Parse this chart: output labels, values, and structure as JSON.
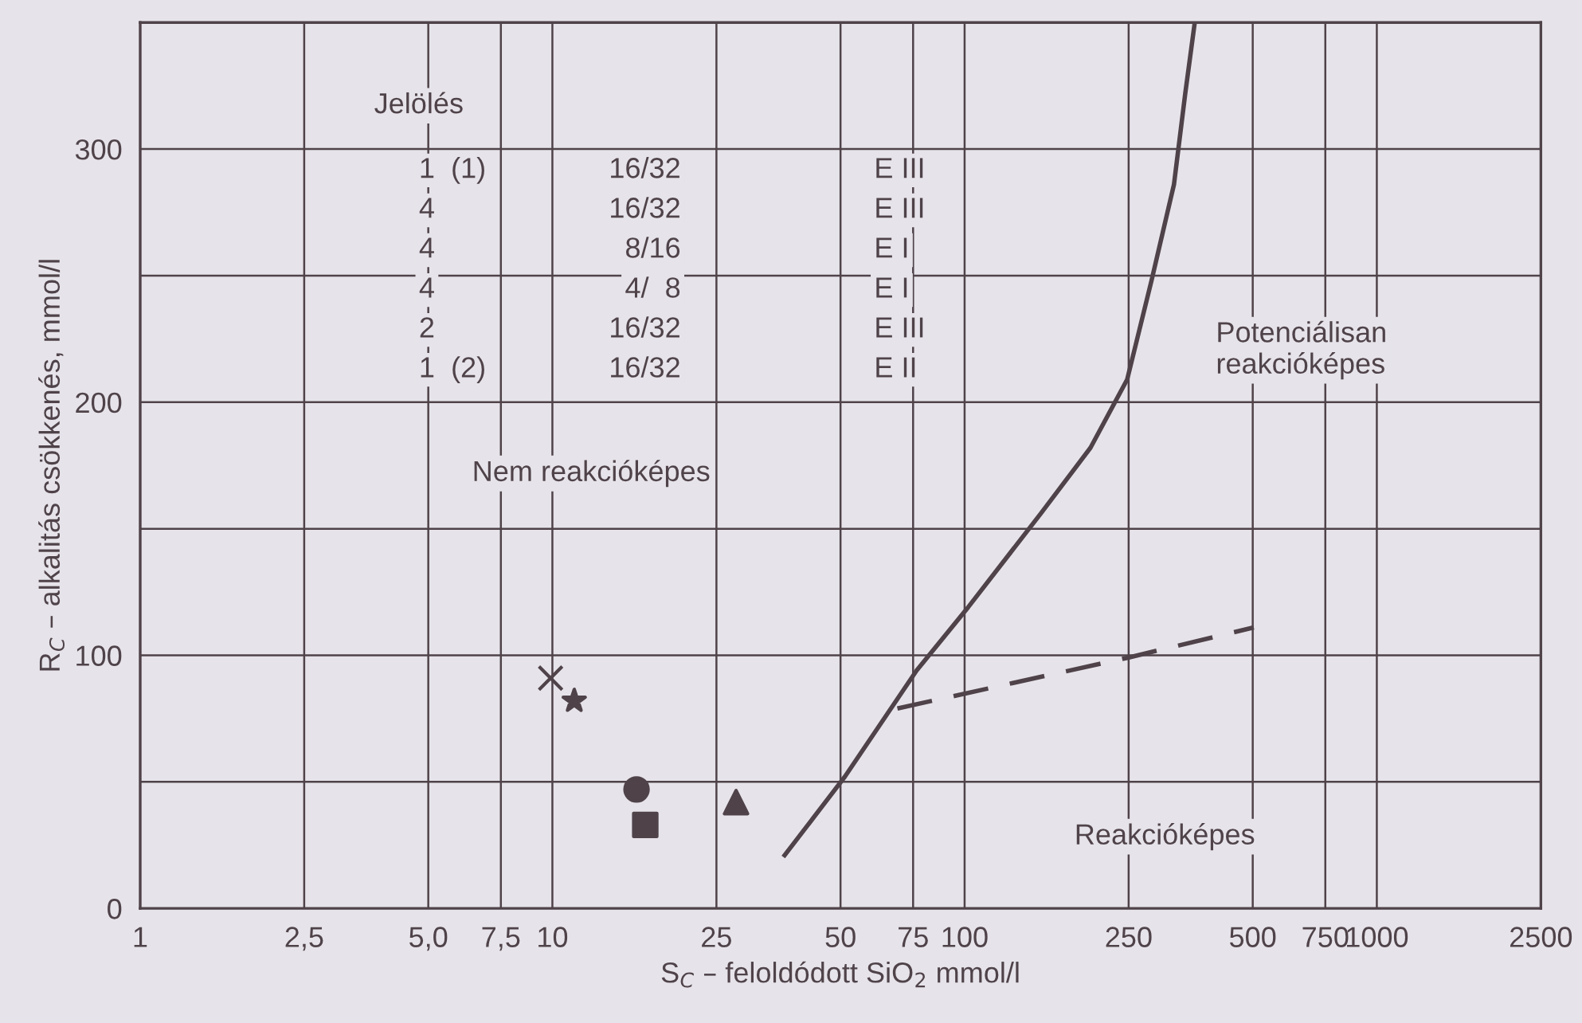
{
  "chart_data": {
    "type": "line",
    "xlabel": "S$_{C}$ – feloldódott SiO$_{2}$ mmol/l",
    "ylabel": "R$_{C}$ – alkalitás csökkenés, mmol/l",
    "log": "x",
    "grid": true,
    "legend": false,
    "xlim": [
      1,
      2500
    ],
    "xticks": [
      1,
      {
        "value": 2.5,
        "label": "2,5"
      },
      {
        "value": 5,
        "label": "5,0"
      },
      {
        "value": 7.5,
        "label": "7,5"
      },
      10,
      25,
      50,
      75,
      100,
      250,
      500,
      750,
      1000,
      2500
    ],
    "ylim": [
      0,
      350
    ],
    "yticks": [
      0,
      {
        "value": 50,
        "label": null
      },
      100,
      {
        "value": 150,
        "label": null
      },
      200,
      {
        "value": 250,
        "label": null
      },
      300,
      {
        "value": 350,
        "label": null
      }
    ],
    "series": [
      {
        "color": "#4f4349",
        "line_style": "solid",
        "marker": "none",
        "x": [
          36.6,
          51.2,
          76.5,
          102,
          153,
          202,
          248,
          284,
          322,
          343,
          361
        ],
        "values": [
          21,
          52,
          94,
          119,
          156,
          182,
          209,
          248,
          286,
          322,
          349
        ]
      },
      {
        "color": "#4f4349",
        "line_style": "dashed",
        "marker": "none",
        "x": [
          68.7,
          248,
          503
        ],
        "values": [
          79,
          99,
          111
        ]
      },
      {
        "type": "scatter",
        "color": "#4f4349",
        "marker": "cross",
        "x": [
          9.9
        ],
        "values": [
          91
        ]
      },
      {
        "type": "scatter",
        "color": "#4f4349",
        "marker": "star",
        "x": [
          11.3
        ],
        "values": [
          82
        ]
      },
      {
        "type": "scatter",
        "color": "#4f4349",
        "marker": "circle",
        "x": [
          16.0
        ],
        "values": [
          47
        ]
      },
      {
        "type": "scatter",
        "color": "#4f4349",
        "marker": "square",
        "x": [
          16.8
        ],
        "values": [
          33
        ]
      },
      {
        "type": "scatter",
        "color": "#4f4349",
        "marker": "triangle",
        "x": [
          27.9
        ],
        "values": [
          42
        ]
      }
    ],
    "annotations": [
      "Nem reakcióképes",
      "Potenciálisan\nreakcióképes",
      "Reakcióképes",
      "Jelölés",
      "1  (1)",
      "16/32",
      "E III",
      "4",
      "16/32",
      "E III",
      "4",
      "8/16",
      "E I",
      "4",
      "4/  8",
      "E I",
      "2",
      "16/32",
      "E III",
      "1  (2)",
      "16/32",
      "E II"
    ]
  }
}
